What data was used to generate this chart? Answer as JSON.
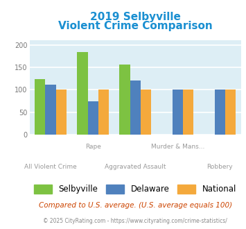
{
  "title_line1": "2019 Selbyville",
  "title_line2": "Violent Crime Comparison",
  "title_color": "#1a8fd1",
  "categories": [
    "All Violent Crime",
    "Rape",
    "Aggravated Assault",
    "Murder & Mans...",
    "Robbery"
  ],
  "selbyville": [
    124,
    184,
    157,
    0,
    0
  ],
  "delaware": [
    112,
    75,
    121,
    100,
    100
  ],
  "national": [
    100,
    100,
    100,
    100,
    100
  ],
  "bar_colors": {
    "selbyville": "#7dc242",
    "delaware": "#4f81bd",
    "national": "#f4a93c"
  },
  "ylim": [
    0,
    210
  ],
  "yticks": [
    0,
    50,
    100,
    150,
    200
  ],
  "footnote": "Compared to U.S. average. (U.S. average equals 100)",
  "footnote_color": "#cc4400",
  "copyright": "© 2025 CityRating.com - https://www.cityrating.com/crime-statistics/",
  "copyright_color": "#888888",
  "white_bg": "#ffffff",
  "plot_bg_color": "#ddeef5",
  "grid_color": "#ffffff",
  "label_color": "#999999"
}
